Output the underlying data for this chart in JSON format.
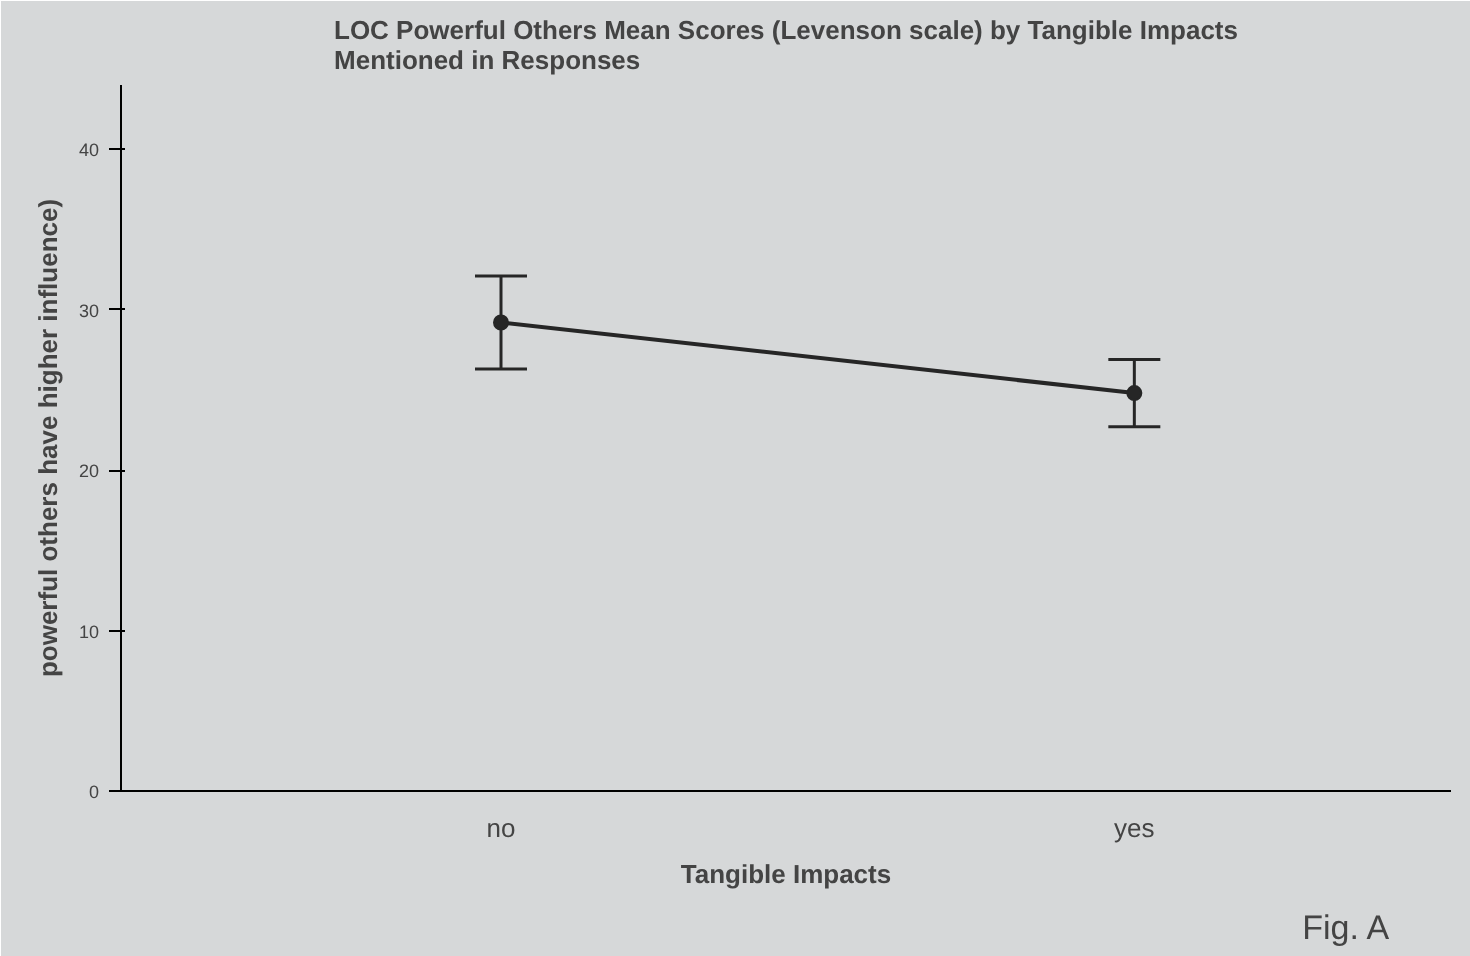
{
  "chart_data": {
    "type": "line",
    "title": "LOC Powerful Others Mean Scores (Levenson scale) by Tangible Impacts\nMentioned in Responses",
    "xlabel": "Tangible Impacts",
    "ylabel": "powerful others have higher influence)",
    "categories": [
      "no",
      "yes"
    ],
    "series": [
      {
        "color": "#262626",
        "values": [
          29.2,
          24.8
        ],
        "errors": [
          [
            26.3,
            32.1
          ],
          [
            22.7,
            26.9
          ]
        ]
      }
    ],
    "ylim": [
      0,
      44
    ],
    "yticks": [
      0,
      10,
      20,
      30,
      40
    ],
    "grid": false,
    "marker": "circle",
    "line_style": "solid",
    "annotations": [
      "Fig. A"
    ]
  }
}
